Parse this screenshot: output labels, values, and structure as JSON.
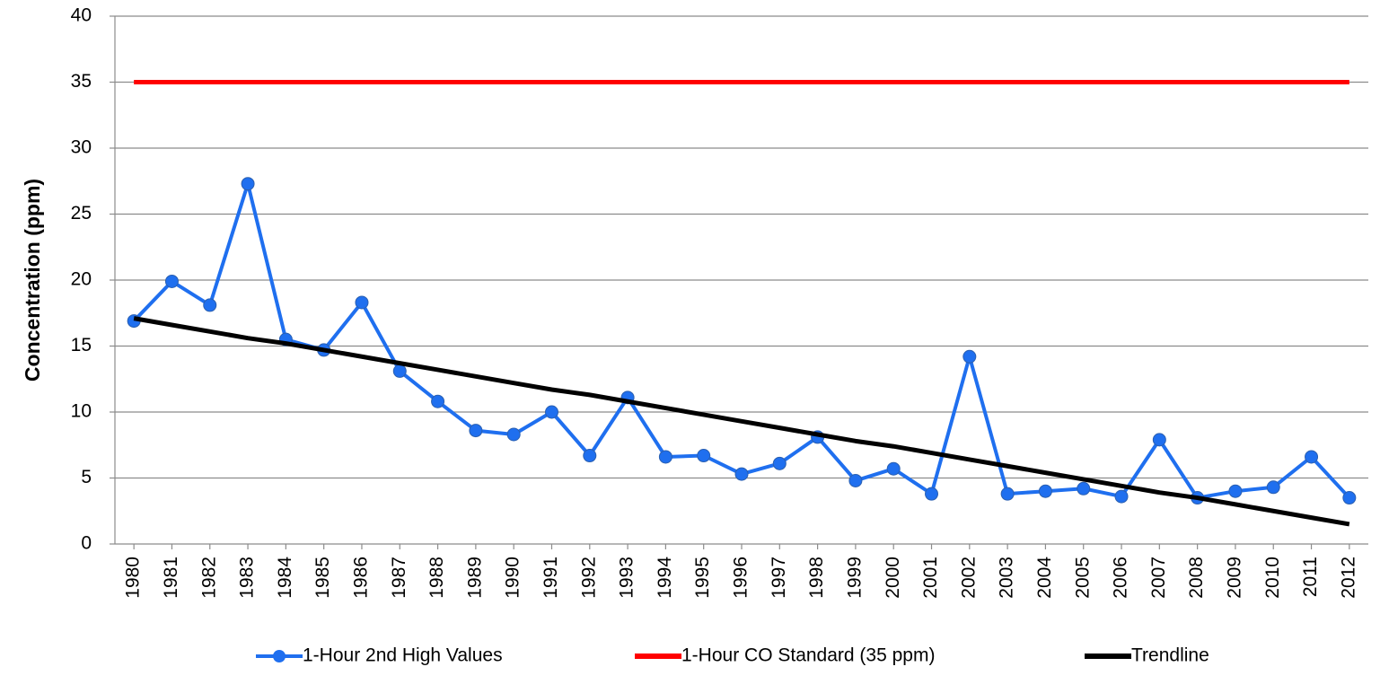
{
  "chart_data": {
    "type": "line",
    "y_label": "Concentration (ppm)",
    "categories": [
      "1980",
      "1981",
      "1982",
      "1983",
      "1984",
      "1985",
      "1986",
      "1987",
      "1988",
      "1989",
      "1990",
      "1991",
      "1992",
      "1993",
      "1994",
      "1995",
      "1996",
      "1997",
      "1998",
      "1999",
      "2000",
      "2001",
      "2002",
      "2003",
      "2004",
      "2005",
      "2006",
      "2007",
      "2008",
      "2009",
      "2010",
      "2011",
      "2012"
    ],
    "series": [
      {
        "name": "1-Hour 2nd High Values",
        "color": "#1f6fef",
        "marker": "circle",
        "values": [
          16.9,
          19.9,
          18.1,
          27.3,
          15.5,
          14.7,
          18.3,
          13.1,
          10.8,
          8.6,
          8.3,
          10.0,
          6.7,
          11.1,
          6.6,
          6.7,
          5.3,
          6.1,
          8.1,
          4.8,
          5.7,
          3.8,
          14.2,
          3.8,
          4.0,
          4.2,
          3.6,
          7.9,
          3.5,
          4.0,
          4.3,
          6.6,
          3.5
        ]
      },
      {
        "name": "1-Hour CO Standard (35 ppm)",
        "color": "#ff0000",
        "values": [
          35,
          35,
          35,
          35,
          35,
          35,
          35,
          35,
          35,
          35,
          35,
          35,
          35,
          35,
          35,
          35,
          35,
          35,
          35,
          35,
          35,
          35,
          35,
          35,
          35,
          35,
          35,
          35,
          35,
          35,
          35,
          35,
          35
        ]
      },
      {
        "name": "Trendline",
        "color": "#000000",
        "values": [
          17.1,
          16.6,
          16.1,
          15.6,
          15.2,
          14.7,
          14.2,
          13.7,
          13.2,
          12.7,
          12.2,
          11.7,
          11.3,
          10.8,
          10.3,
          9.8,
          9.3,
          8.8,
          8.3,
          7.8,
          7.4,
          6.9,
          6.4,
          5.9,
          5.4,
          4.9,
          4.4,
          3.9,
          3.5,
          3.0,
          2.5,
          2.0,
          1.5
        ]
      }
    ],
    "ylim": [
      0,
      40
    ],
    "yticks": [
      0,
      5,
      10,
      15,
      20,
      25,
      30,
      35,
      40
    ],
    "grid": true,
    "legend": "bottom"
  }
}
